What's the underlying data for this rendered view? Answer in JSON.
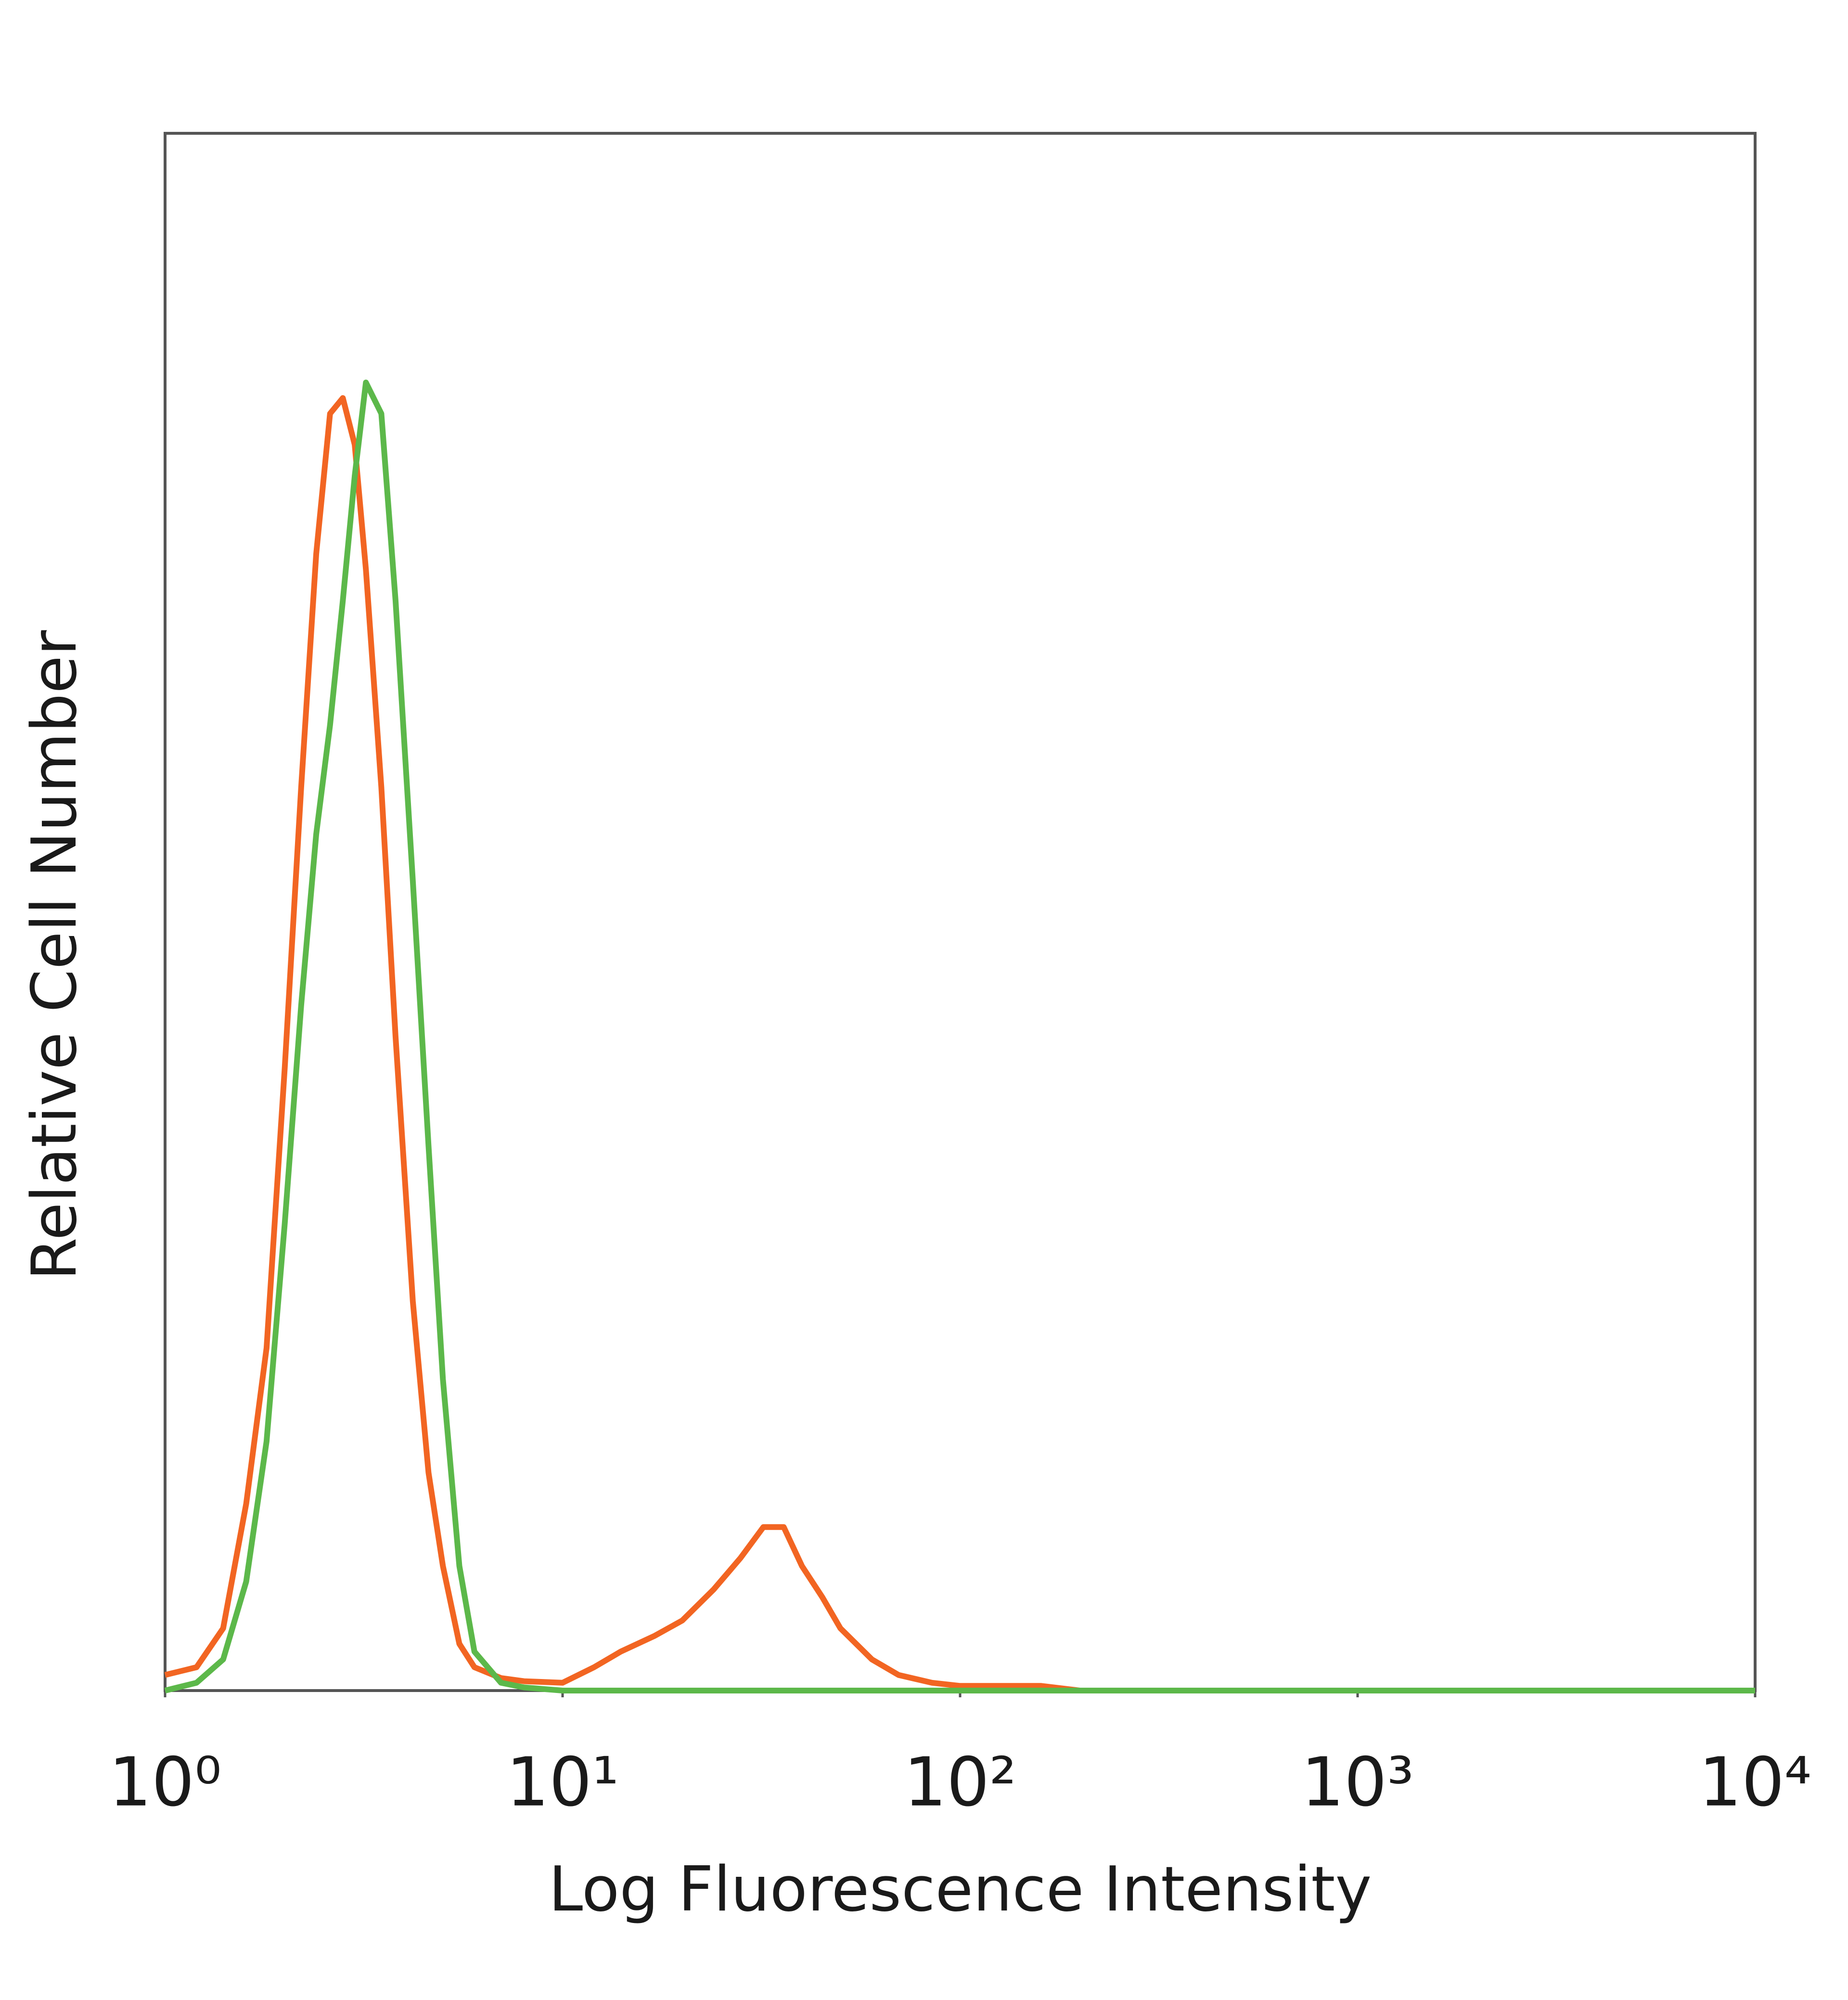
{
  "chart_data": {
    "type": "line",
    "x_label": "Log Fluorescence Intensity",
    "y_label": "Relative Cell Number",
    "log_x": true,
    "xlim": [
      1,
      10000
    ],
    "xticks": [
      {
        "value": 1,
        "label": "10⁰"
      },
      {
        "value": 10,
        "label": "10¹"
      },
      {
        "value": 100,
        "label": "10²"
      },
      {
        "value": 1000,
        "label": "10³"
      },
      {
        "value": 10000,
        "label": "10⁴"
      }
    ],
    "ylim": [
      0,
      100
    ],
    "x": [
      1,
      1.2,
      1.4,
      1.6,
      1.8,
      2,
      2.2,
      2.4,
      2.6,
      2.8,
      3,
      3.2,
      3.5,
      3.8,
      4.2,
      4.6,
      5,
      5.5,
      6,
      7,
      8,
      10,
      12,
      14,
      17,
      20,
      24,
      28,
      32,
      36,
      40,
      45,
      50,
      60,
      70,
      85,
      100,
      130,
      160,
      200,
      1000,
      10000
    ],
    "series": [
      {
        "color": "#f26522",
        "values": [
          1,
          1.5,
          4,
          12,
          22,
          40,
          58,
          73,
          82,
          83,
          80,
          72,
          58,
          42,
          25,
          14,
          8,
          3,
          1.5,
          0.8,
          0.6,
          0.5,
          1.5,
          2.5,
          3.5,
          4.5,
          6.5,
          8.5,
          10.5,
          10.5,
          8,
          6,
          4,
          2,
          1,
          0.5,
          0.3,
          0.3,
          0.3,
          0,
          0,
          0
        ]
      },
      {
        "color": "#5cb84a",
        "values": [
          0,
          0.5,
          2,
          7,
          16,
          30,
          44,
          55,
          62,
          70,
          78,
          84,
          82,
          70,
          52,
          35,
          20,
          8,
          2.5,
          0.5,
          0.2,
          0,
          0,
          0,
          0,
          0,
          0,
          0,
          0,
          0,
          0,
          0,
          0,
          0,
          0,
          0,
          0,
          0,
          0,
          0,
          0,
          0
        ]
      }
    ]
  }
}
